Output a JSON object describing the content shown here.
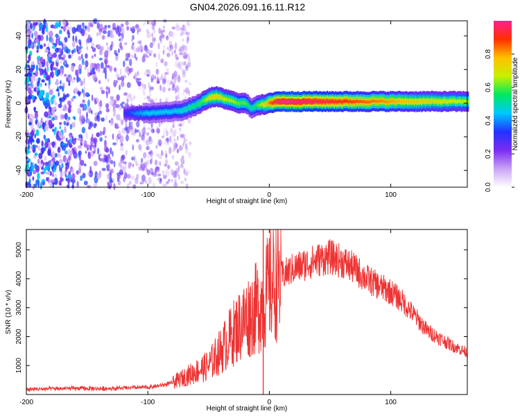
{
  "title": "GN04.2026.091.16.11.R12",
  "chart_data": [
    {
      "type": "heatmap",
      "xlabel": "Height of straight line (km)",
      "ylabel": "Frequency (Hz)",
      "xlim": [
        -200,
        163
      ],
      "ylim": [
        -50,
        49
      ],
      "xticks": [
        -200,
        -100,
        0,
        100
      ],
      "yticks": [
        -40,
        -20,
        0,
        20,
        40
      ],
      "colorbar": {
        "label": "Normalized spectral amplitude",
        "range": [
          0,
          1
        ],
        "ticks": [
          "0.0",
          "0.2",
          "0.4",
          "0.6",
          "0.8"
        ],
        "colors": [
          "#ffffff",
          "#c9a4f5",
          "#7b2cf0",
          "#2233ff",
          "#00c8ff",
          "#00e860",
          "#c8f000",
          "#ffc000",
          "#ff3000",
          "#ff2090"
        ]
      },
      "ridge": {
        "x": [
          -120,
          -110,
          -100,
          -90,
          -80,
          -70,
          -60,
          -55,
          -50,
          -45,
          -40,
          -35,
          -30,
          -25,
          -20,
          -15,
          -10,
          -5,
          0,
          5,
          10,
          20,
          40,
          60,
          80,
          100,
          120,
          140,
          163
        ],
        "freq": [
          -6,
          -6,
          -6,
          -5.5,
          -5,
          -4,
          -1,
          1,
          3,
          4,
          3,
          2,
          1,
          0,
          0,
          -3,
          -1,
          -1,
          0,
          1,
          1,
          1,
          1,
          1,
          1,
          1,
          1,
          1,
          1
        ],
        "peak_amplitude": [
          0.3,
          0.4,
          0.45,
          0.45,
          0.45,
          0.5,
          0.55,
          0.6,
          0.7,
          0.75,
          0.7,
          0.65,
          0.65,
          0.6,
          0.6,
          0.5,
          0.6,
          0.7,
          0.85,
          0.95,
          1.0,
          1.0,
          0.95,
          0.9,
          0.85,
          0.8,
          0.75,
          0.7,
          0.65
        ]
      },
      "noise_region": {
        "x_range": [
          -200,
          -75
        ],
        "freq_range": [
          -50,
          49
        ],
        "amplitude_range": [
          0.05,
          0.35
        ]
      }
    },
    {
      "type": "line",
      "xlabel": "Height of straight line (km)",
      "ylabel": "SNR (10 * v/v)",
      "xlim": [
        -200,
        163
      ],
      "ylim": [
        0,
        5700
      ],
      "xticks": [
        -200,
        -100,
        0,
        100
      ],
      "yticks": [
        1000,
        2000,
        3000,
        4000,
        5000
      ],
      "series": [
        {
          "name": "SNR",
          "color": "#ee3333",
          "x": [
            -200,
            -180,
            -160,
            -140,
            -120,
            -100,
            -90,
            -80,
            -70,
            -60,
            -50,
            -40,
            -30,
            -20,
            -10,
            -5,
            0,
            10,
            20,
            30,
            40,
            50,
            60,
            70,
            80,
            90,
            100,
            110,
            120,
            130,
            140,
            150,
            163
          ],
          "y": [
            180,
            200,
            210,
            200,
            220,
            250,
            300,
            400,
            600,
            800,
            1000,
            1500,
            2100,
            2600,
            3000,
            3200,
            3700,
            4100,
            4350,
            4500,
            4650,
            4750,
            4600,
            4350,
            4000,
            3750,
            3550,
            3200,
            2700,
            2200,
            1950,
            1700,
            1450
          ]
        }
      ],
      "spike": {
        "x": -5,
        "y": 5700
      }
    }
  ]
}
